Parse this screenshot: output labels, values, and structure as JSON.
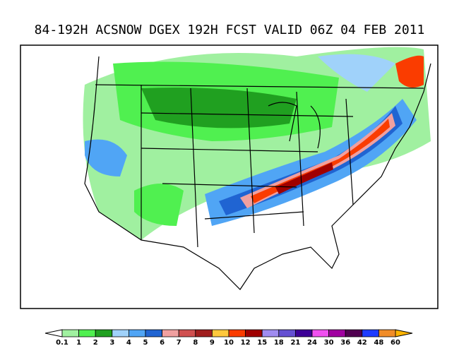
{
  "header": {
    "title": "84-192H ACSNOW DGEX 192H FCST VALID 06Z 04 FEB 2011"
  },
  "colorbar": {
    "labels": [
      "0.1",
      "1",
      "2",
      "3",
      "4",
      "5",
      "6",
      "7",
      "8",
      "9",
      "10",
      "12",
      "15",
      "18",
      "21",
      "24",
      "30",
      "36",
      "42",
      "48",
      "60"
    ],
    "colors": [
      "#a0f0a0",
      "#50f050",
      "#20a020",
      "#a0d2fa",
      "#50a5f5",
      "#2064d2",
      "#f0a0a0",
      "#d05050",
      "#a01e1e",
      "#ffc83c",
      "#fa3c00",
      "#a00000",
      "#a08cf0",
      "#6450d2",
      "#3c0096",
      "#f050f0",
      "#a000a0",
      "#500050",
      "#1e3cff",
      "#f08c28"
    ],
    "under_color": "#ffffff",
    "over_color": "#ffb400"
  }
}
